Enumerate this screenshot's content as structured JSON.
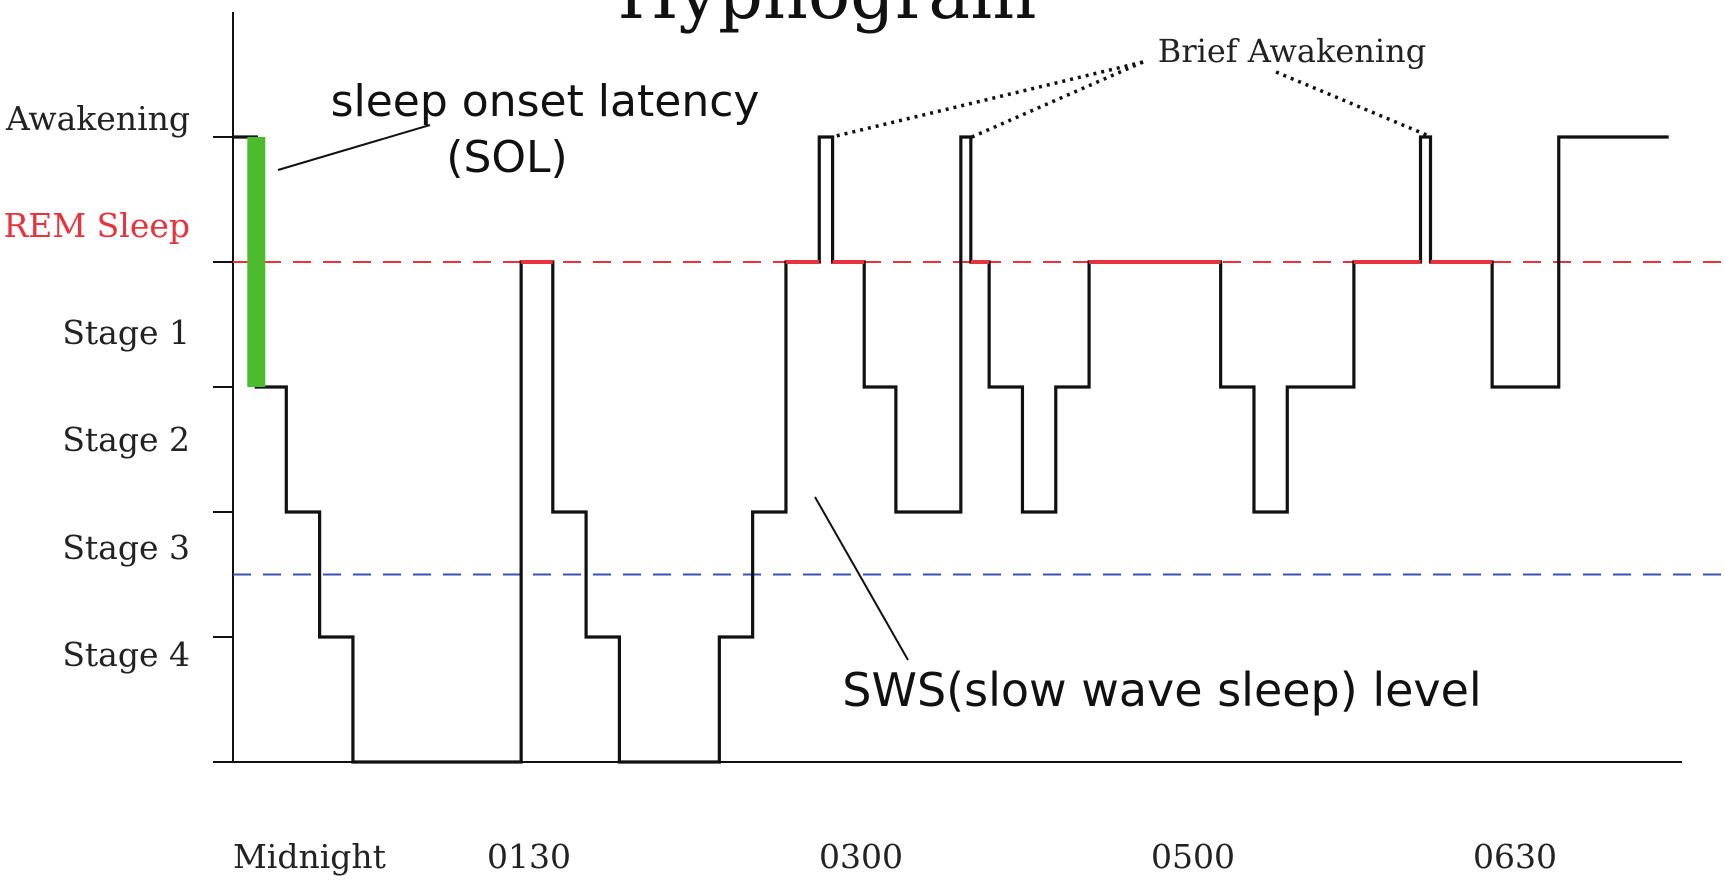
{
  "chart_data": {
    "type": "line",
    "title": "Hypnogram",
    "stages": [
      "Awakening",
      "REM Sleep",
      "Stage 1",
      "Stage 2",
      "Stage 3",
      "Stage 4"
    ],
    "x_ticks": [
      "Midnight",
      "0130",
      "0300",
      "0500",
      "0630"
    ],
    "x_tick_hours": [
      0,
      1.5,
      3,
      5,
      6.5
    ],
    "x_range_hours": [
      0,
      8.7
    ],
    "y_range": [
      -1,
      5
    ],
    "series": [
      {
        "steps": [
          [
            0.0,
            0
          ],
          [
            0.14,
            2
          ],
          [
            0.32,
            3
          ],
          [
            0.52,
            4
          ],
          [
            0.72,
            5
          ],
          [
            1.73,
            1
          ],
          [
            1.92,
            3
          ],
          [
            2.12,
            4
          ],
          [
            2.32,
            5
          ],
          [
            2.92,
            4
          ],
          [
            3.12,
            3
          ],
          [
            3.32,
            1
          ],
          [
            3.52,
            0
          ],
          [
            3.6,
            1
          ],
          [
            3.79,
            2
          ],
          [
            3.98,
            3
          ],
          [
            4.37,
            0
          ],
          [
            4.43,
            1
          ],
          [
            4.54,
            2
          ],
          [
            4.74,
            3
          ],
          [
            4.94,
            2
          ],
          [
            5.14,
            1
          ],
          [
            5.93,
            2
          ],
          [
            6.13,
            3
          ],
          [
            6.33,
            2
          ],
          [
            6.73,
            1
          ],
          [
            7.13,
            0
          ],
          [
            7.19,
            1
          ],
          [
            7.56,
            2
          ],
          [
            7.96,
            0
          ],
          [
            8.62,
            0
          ]
        ]
      }
    ],
    "sol": {
      "x_hours": 0.14,
      "from_stage": 0,
      "to_stage": 2,
      "color": "#4cbb2e"
    },
    "rem_line": {
      "stage": 1,
      "color": "#e8323c"
    },
    "sws_line": {
      "level": 3.5,
      "color": "#3c4fb4"
    },
    "brief_awakening_x_hours": [
      3.56,
      4.4,
      7.16
    ],
    "annotations": {
      "sol_label_line1": "sleep onset latency",
      "sol_label_line2": "(SOL)",
      "brief_awakening": "Brief Awakening",
      "sws_label": "SWS(slow wave sleep) level"
    },
    "colors": {
      "line": "#111111",
      "rem_label": "#e8323c",
      "rem_segment": "#e8323c"
    }
  }
}
